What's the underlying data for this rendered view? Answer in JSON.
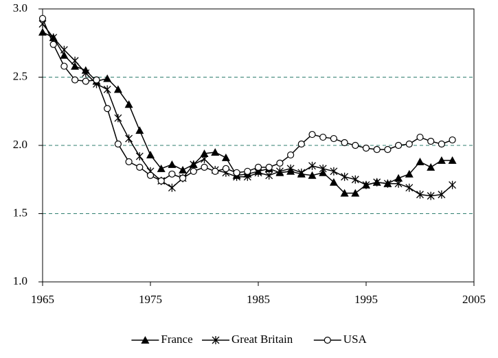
{
  "chart_data": {
    "type": "line",
    "x": [
      1965,
      1966,
      1967,
      1968,
      1969,
      1970,
      1971,
      1972,
      1973,
      1974,
      1975,
      1976,
      1977,
      1978,
      1979,
      1980,
      1981,
      1982,
      1983,
      1984,
      1985,
      1986,
      1987,
      1988,
      1989,
      1990,
      1991,
      1992,
      1993,
      1994,
      1995,
      1996,
      1997,
      1998,
      1999,
      2000,
      2001,
      2002,
      2003
    ],
    "series": [
      {
        "name": "France",
        "color": "#000000",
        "marker": "triangle",
        "values": [
          2.83,
          2.79,
          2.66,
          2.58,
          2.55,
          2.47,
          2.49,
          2.41,
          2.3,
          2.11,
          1.93,
          1.83,
          1.86,
          1.82,
          1.86,
          1.94,
          1.95,
          1.91,
          1.78,
          1.79,
          1.81,
          1.83,
          1.8,
          1.81,
          1.79,
          1.78,
          1.8,
          1.73,
          1.65,
          1.65,
          1.71,
          1.73,
          1.72,
          1.76,
          1.79,
          1.88,
          1.84,
          1.89,
          1.89
        ]
      },
      {
        "name": "Great Britain",
        "color": "#000000",
        "marker": "asterisk",
        "values": [
          2.89,
          2.79,
          2.7,
          2.62,
          2.53,
          2.45,
          2.41,
          2.2,
          2.05,
          1.92,
          1.81,
          1.74,
          1.69,
          1.76,
          1.86,
          1.9,
          1.82,
          1.8,
          1.77,
          1.77,
          1.8,
          1.78,
          1.81,
          1.83,
          1.8,
          1.85,
          1.83,
          1.81,
          1.77,
          1.75,
          1.71,
          1.73,
          1.72,
          1.72,
          1.69,
          1.64,
          1.63,
          1.64,
          1.71
        ]
      },
      {
        "name": "USA",
        "color": "#000000",
        "marker": "circle",
        "values": [
          2.93,
          2.74,
          2.58,
          2.48,
          2.47,
          2.48,
          2.27,
          2.01,
          1.88,
          1.84,
          1.78,
          1.74,
          1.79,
          1.76,
          1.81,
          1.84,
          1.81,
          1.83,
          1.8,
          1.81,
          1.84,
          1.84,
          1.87,
          1.93,
          2.01,
          2.08,
          2.06,
          2.05,
          2.02,
          2.0,
          1.98,
          1.97,
          1.97,
          2.0,
          2.01,
          2.06,
          2.03,
          2.01,
          2.04
        ]
      }
    ],
    "xlim": [
      1965,
      2005
    ],
    "xticks": [
      1965,
      1975,
      1985,
      1995,
      2005
    ],
    "ylim": [
      1,
      3
    ],
    "yticks": [
      {
        "value": 1,
        "label": "1.0"
      },
      {
        "value": 1.5,
        "label": "1.5"
      },
      {
        "value": 2,
        "label": "2.0"
      },
      {
        "value": 2.5,
        "label": "2.5"
      },
      {
        "value": 3,
        "label": "3.0"
      }
    ],
    "grid": true,
    "legend": "bottom"
  }
}
